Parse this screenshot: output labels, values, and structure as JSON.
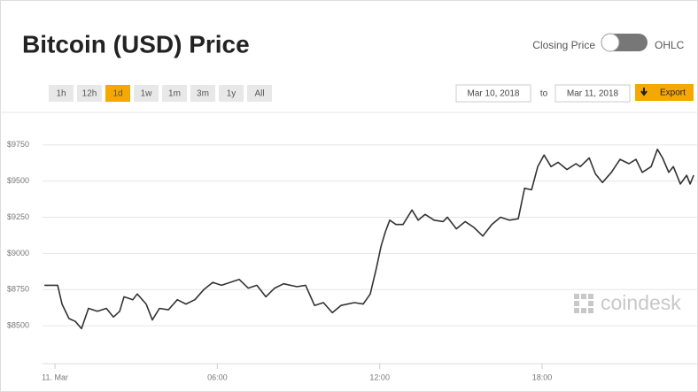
{
  "header": {
    "title": "Bitcoin (USD) Price",
    "toggle_left": "Closing Price",
    "toggle_right": "OHLC"
  },
  "ranges": {
    "buttons": [
      "1h",
      "12h",
      "1d",
      "1w",
      "1m",
      "3m",
      "1y",
      "All"
    ],
    "active": 2,
    "from": "Mar 10, 2018",
    "separator": "to",
    "to": "Mar 11, 2018",
    "export": "Export"
  },
  "watermark": "coindesk",
  "chart_data": {
    "type": "line",
    "color": "#333333",
    "x": [
      -0.39,
      0.1,
      0.26,
      0.52,
      0.75,
      0.98,
      1.24,
      1.57,
      1.9,
      2.16,
      2.39,
      2.55,
      2.88,
      3.04,
      3.37,
      3.6,
      3.86,
      4.19,
      4.52,
      4.84,
      5.17,
      5.5,
      5.83,
      6.15,
      6.81,
      7.14,
      7.46,
      7.79,
      8.12,
      8.45,
      8.94,
      9.26,
      9.59,
      9.92,
      10.25,
      10.57,
      11.06,
      11.39,
      11.65,
      11.88,
      12.05,
      12.21,
      12.37,
      12.6,
      12.86,
      13.19,
      13.42,
      13.68,
      14.01,
      14.34,
      14.5,
      14.83,
      15.16,
      15.48,
      15.81,
      16.14,
      16.46,
      16.79,
      17.12,
      17.35,
      17.61,
      17.84,
      18.07,
      18.33,
      18.59,
      18.92,
      19.25,
      19.41,
      19.74,
      19.97,
      20.23,
      20.56,
      20.88,
      21.21,
      21.47,
      21.7,
      22.03,
      22.26,
      22.45,
      22.68,
      22.85,
      23.11,
      23.34,
      23.47,
      23.6
    ],
    "values": [
      8780,
      8780,
      8650,
      8550,
      8530,
      8480,
      8620,
      8600,
      8620,
      8560,
      8600,
      8700,
      8680,
      8720,
      8650,
      8540,
      8620,
      8610,
      8680,
      8650,
      8680,
      8750,
      8800,
      8780,
      8820,
      8760,
      8780,
      8700,
      8760,
      8790,
      8770,
      8780,
      8640,
      8660,
      8590,
      8640,
      8660,
      8650,
      8720,
      8900,
      9050,
      9150,
      9230,
      9200,
      9200,
      9300,
      9230,
      9270,
      9230,
      9220,
      9250,
      9170,
      9220,
      9180,
      9120,
      9200,
      9250,
      9230,
      9240,
      9450,
      9440,
      9600,
      9680,
      9600,
      9630,
      9580,
      9620,
      9600,
      9660,
      9550,
      9490,
      9560,
      9650,
      9620,
      9650,
      9560,
      9600,
      9720,
      9660,
      9560,
      9600,
      9480,
      9540,
      9480,
      9540
    ],
    "xlim": [
      -0.46,
      23.76
    ],
    "ylim": [
      8250,
      9975
    ],
    "xticks": [
      {
        "value": 0,
        "label": "11. Mar"
      },
      {
        "value": 6,
        "label": "06:00"
      },
      {
        "value": 12,
        "label": "12:00"
      },
      {
        "value": 18,
        "label": "18:00"
      }
    ],
    "yticks": [
      {
        "value": 8500,
        "label": "$8500"
      },
      {
        "value": 8750,
        "label": "$8750"
      },
      {
        "value": 9000,
        "label": "$9000"
      },
      {
        "value": 9250,
        "label": "$9250"
      },
      {
        "value": 9500,
        "label": "$9500"
      },
      {
        "value": 9750,
        "label": "$9750"
      }
    ],
    "grid": true
  }
}
